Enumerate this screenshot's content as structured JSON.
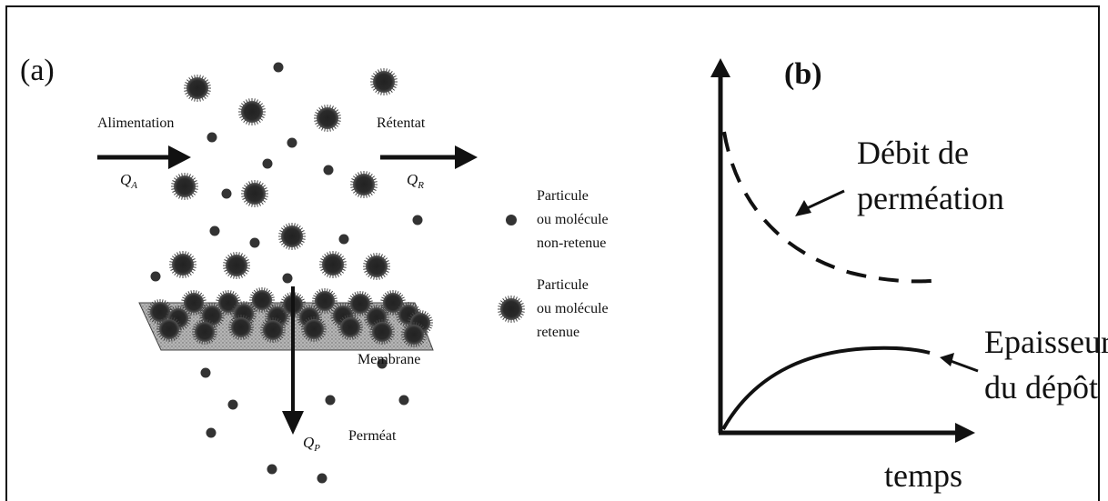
{
  "panel_a": {
    "label": "(a)",
    "feed_label": "Alimentation",
    "feed_flow": "Q",
    "feed_sub": "A",
    "retentate_label": "Rétentat",
    "retentate_flow": "Q",
    "retentate_sub": "R",
    "membrane_label": "Membrane",
    "permeate_label": "Perméat",
    "permeate_flow": "Q",
    "permeate_sub": "P",
    "legend": {
      "small_line1": "Particule",
      "small_line2": "ou molécule",
      "small_line3": "non-retenue",
      "large_line1": "Particule",
      "large_line2": "ou molécule",
      "large_line3": "retenue"
    }
  },
  "panel_b": {
    "label": "(b)",
    "curve_flux_line1": "Débit de",
    "curve_flux_line2": "perméation",
    "curve_deposit_line1": "Epaisseur",
    "curve_deposit_line2": "du dépôt",
    "x_axis_label": "temps"
  },
  "colors": {
    "ink": "#111111",
    "membrane": "#9a9a9a"
  }
}
